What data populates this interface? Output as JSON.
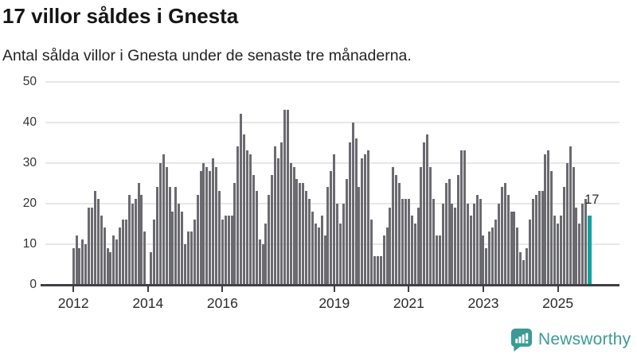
{
  "header": {
    "title": "17 villor såldes i Gnesta",
    "subtitle": "Antal sålda villor i Gnesta under de senaste tre månaderna."
  },
  "chart_data": {
    "type": "bar",
    "title": "17 villor såldes i Gnesta",
    "subtitle": "Antal sålda villor i Gnesta under de senaste tre månaderna.",
    "x_start_year": 2012,
    "x_interval": "monthly",
    "ylim": [
      0,
      50
    ],
    "yticks": [
      0,
      10,
      20,
      30,
      40,
      50
    ],
    "xtick_years": [
      2012,
      2014,
      2016,
      2019,
      2021,
      2023,
      2025
    ],
    "grid": "horizontal",
    "legend": "none",
    "bar_color": "#6a6a70",
    "highlight": {
      "index": 166,
      "value": 17,
      "label": "17",
      "color": "#16a0a0"
    },
    "values": [
      9,
      12,
      9,
      11,
      10,
      19,
      19,
      23,
      21,
      17,
      14,
      9,
      8,
      12,
      11,
      14,
      16,
      16,
      22,
      20,
      21,
      25,
      22,
      13,
      0,
      8,
      16,
      24,
      30,
      32,
      29,
      24,
      18,
      24,
      20,
      18,
      10,
      13,
      13,
      16,
      22,
      28,
      30,
      29,
      28,
      31,
      29,
      23,
      16,
      17,
      17,
      17,
      25,
      34,
      42,
      37,
      33,
      32,
      27,
      23,
      11,
      10,
      15,
      22,
      27,
      34,
      31,
      35,
      43,
      43,
      30,
      29,
      26,
      25,
      25,
      23,
      21,
      18,
      15,
      14,
      17,
      12,
      24,
      28,
      32,
      20,
      15,
      20,
      26,
      35,
      40,
      36,
      24,
      31,
      32,
      33,
      16,
      7,
      7,
      7,
      12,
      14,
      19,
      29,
      27,
      25,
      21,
      21,
      21,
      17,
      15,
      19,
      29,
      35,
      37,
      29,
      21,
      12,
      12,
      20,
      25,
      26,
      20,
      19,
      27,
      33,
      33,
      20,
      17,
      20,
      22,
      21,
      12,
      9,
      13,
      14,
      16,
      20,
      24,
      25,
      22,
      18,
      18,
      14,
      8,
      6,
      9,
      16,
      21,
      22,
      23,
      23,
      32,
      33,
      28,
      17,
      15,
      17,
      24,
      30,
      34,
      29,
      19,
      15,
      20,
      21,
      17
    ]
  },
  "footer": {
    "brand": "Newsworthy"
  }
}
